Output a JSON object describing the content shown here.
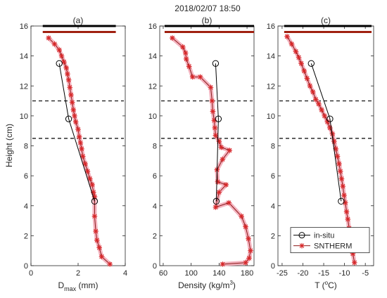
{
  "chart_data": {
    "type": "line",
    "title": "2018/02/07 18:50",
    "ylabel": "Height (cm)",
    "ylim": [
      0,
      16
    ],
    "yticks": [
      "0",
      "2",
      "4",
      "6",
      "8",
      "10",
      "12",
      "14",
      "16"
    ],
    "legend": {
      "placement": "bottom-right",
      "entries": [
        "in-situ",
        "SNTHERM"
      ]
    },
    "colors": {
      "insitu_line": "#000000",
      "sntherm_line": "#8b1a1a",
      "sntherm_glow": "#f2a6b4",
      "sntherm_marker": "#d62728",
      "top_bar_black": "#000000",
      "top_bar_red": "#a02010",
      "dashed": "#000000"
    },
    "dashed_lines_y": [
      11,
      8.5
    ],
    "top_bars_y": [
      16,
      15.6
    ],
    "panels": [
      {
        "label": "(a)",
        "xlabel_main": "D",
        "xlabel_sub": "max",
        "xlabel_unit": " (mm)",
        "xlim": [
          0,
          4
        ],
        "xticks": [
          {
            "value": 0,
            "label": "0"
          },
          {
            "value": 2,
            "label": "2"
          },
          {
            "value": 4,
            "label": "4"
          }
        ],
        "top_bars_x": [
          0.5,
          3.6
        ],
        "series": [
          {
            "name": "in-situ",
            "points": [
              [
                1.2,
                13.5
              ],
              [
                1.6,
                9.8
              ],
              [
                2.7,
                4.3
              ]
            ]
          },
          {
            "name": "SNTHERM",
            "points": [
              [
                0.75,
                15.2
              ],
              [
                1.0,
                14.8
              ],
              [
                1.2,
                14.4
              ],
              [
                1.3,
                14.0
              ],
              [
                1.4,
                13.6
              ],
              [
                1.5,
                13.2
              ],
              [
                1.55,
                12.8
              ],
              [
                1.6,
                12.4
              ],
              [
                1.65,
                11.9
              ],
              [
                1.7,
                11.4
              ],
              [
                1.75,
                10.9
              ],
              [
                1.8,
                10.4
              ],
              [
                1.85,
                10.0
              ],
              [
                1.9,
                9.6
              ],
              [
                2.0,
                9.1
              ],
              [
                2.05,
                8.6
              ],
              [
                2.1,
                8.2
              ],
              [
                2.15,
                7.8
              ],
              [
                2.2,
                7.3
              ],
              [
                2.3,
                6.8
              ],
              [
                2.4,
                6.3
              ],
              [
                2.5,
                5.8
              ],
              [
                2.6,
                5.4
              ],
              [
                2.65,
                4.9
              ],
              [
                2.7,
                4.6
              ],
              [
                2.7,
                3.3
              ],
              [
                2.75,
                2.3
              ],
              [
                2.8,
                1.7
              ],
              [
                2.9,
                1.2
              ],
              [
                3.0,
                0.6
              ],
              [
                3.35,
                0.1
              ]
            ]
          }
        ]
      },
      {
        "label": "(b)",
        "xlabel_main": "Density (kg/m",
        "xlabel_sup": "3",
        "xlabel_after": ")",
        "xlim": [
          55,
          190
        ],
        "xticks": [
          {
            "value": 60,
            "label": "60"
          },
          {
            "value": 100,
            "label": "100"
          },
          {
            "value": 140,
            "label": "140"
          },
          {
            "value": 180,
            "label": "180"
          }
        ],
        "top_bars_x": [
          62,
          190
        ],
        "series": [
          {
            "name": "in-situ",
            "points": [
              [
                135,
                13.5
              ],
              [
                139,
                9.8
              ],
              [
                136,
                4.3
              ]
            ]
          },
          {
            "name": "SNTHERM",
            "points": [
              [
                73,
                15.2
              ],
              [
                88,
                14.6
              ],
              [
                92,
                14.2
              ],
              [
                93,
                13.8
              ],
              [
                97,
                13.3
              ],
              [
                102,
                12.6
              ],
              [
                113,
                12.6
              ],
              [
                128,
                11.9
              ],
              [
                130,
                11.0
              ],
              [
                131,
                10.3
              ],
              [
                133,
                9.7
              ],
              [
                134,
                9.2
              ],
              [
                135,
                8.7
              ],
              [
                140,
                8.3
              ],
              [
                143,
                7.9
              ],
              [
                155,
                7.7
              ],
              [
                145,
                7.1
              ],
              [
                137,
                6.4
              ],
              [
                138,
                5.6
              ],
              [
                150,
                5.4
              ],
              [
                140,
                4.9
              ],
              [
                135,
                3.9
              ],
              [
                154,
                4.2
              ],
              [
                172,
                3.3
              ],
              [
                178,
                2.6
              ],
              [
                182,
                1.8
              ],
              [
                185,
                1.0
              ],
              [
                183,
                0.5
              ],
              [
                178,
                0.2
              ],
              [
                145,
                0.1
              ]
            ]
          }
        ]
      },
      {
        "label": "(c)",
        "xlabel_main": "T (",
        "xlabel_sup": "o",
        "xlabel_after": "C)",
        "xlim": [
          -26,
          -3
        ],
        "xticks": [
          {
            "value": -25,
            "label": "-25"
          },
          {
            "value": -20,
            "label": "-20"
          },
          {
            "value": -15,
            "label": "-15"
          },
          {
            "value": -10,
            "label": "-10"
          },
          {
            "value": -5,
            "label": "-5"
          }
        ],
        "top_bars_x": [
          -24.5,
          -3.5
        ],
        "series": [
          {
            "name": "in-situ",
            "points": [
              [
                -18,
                13.5
              ],
              [
                -13.5,
                9.8
              ],
              [
                -10.8,
                4.3
              ]
            ]
          },
          {
            "name": "SNTHERM",
            "points": [
              [
                -23.8,
                15.3
              ],
              [
                -22.7,
                14.8
              ],
              [
                -21.7,
                14.3
              ],
              [
                -21.0,
                13.9
              ],
              [
                -20.4,
                13.5
              ],
              [
                -19.7,
                13.0
              ],
              [
                -19.0,
                12.5
              ],
              [
                -18.3,
                12.0
              ],
              [
                -17.6,
                11.6
              ],
              [
                -16.9,
                11.1
              ],
              [
                -16.2,
                10.8
              ],
              [
                -15.5,
                10.4
              ],
              [
                -14.8,
                10.0
              ],
              [
                -14.1,
                9.6
              ],
              [
                -13.5,
                9.2
              ],
              [
                -12.9,
                8.8
              ],
              [
                -12.5,
                8.3
              ],
              [
                -12.1,
                7.8
              ],
              [
                -11.7,
                7.3
              ],
              [
                -11.3,
                6.8
              ],
              [
                -11.0,
                6.3
              ],
              [
                -10.7,
                5.8
              ],
              [
                -10.4,
                5.3
              ],
              [
                -10.1,
                4.7
              ],
              [
                -9.8,
                4.2
              ],
              [
                -9.5,
                3.6
              ],
              [
                -9.2,
                3.1
              ],
              [
                -8.9,
                2.5
              ],
              [
                -8.6,
                1.9
              ],
              [
                -8.3,
                1.4
              ],
              [
                -8.0,
                0.8
              ],
              [
                -7.6,
                0.2
              ]
            ]
          }
        ]
      }
    ]
  }
}
